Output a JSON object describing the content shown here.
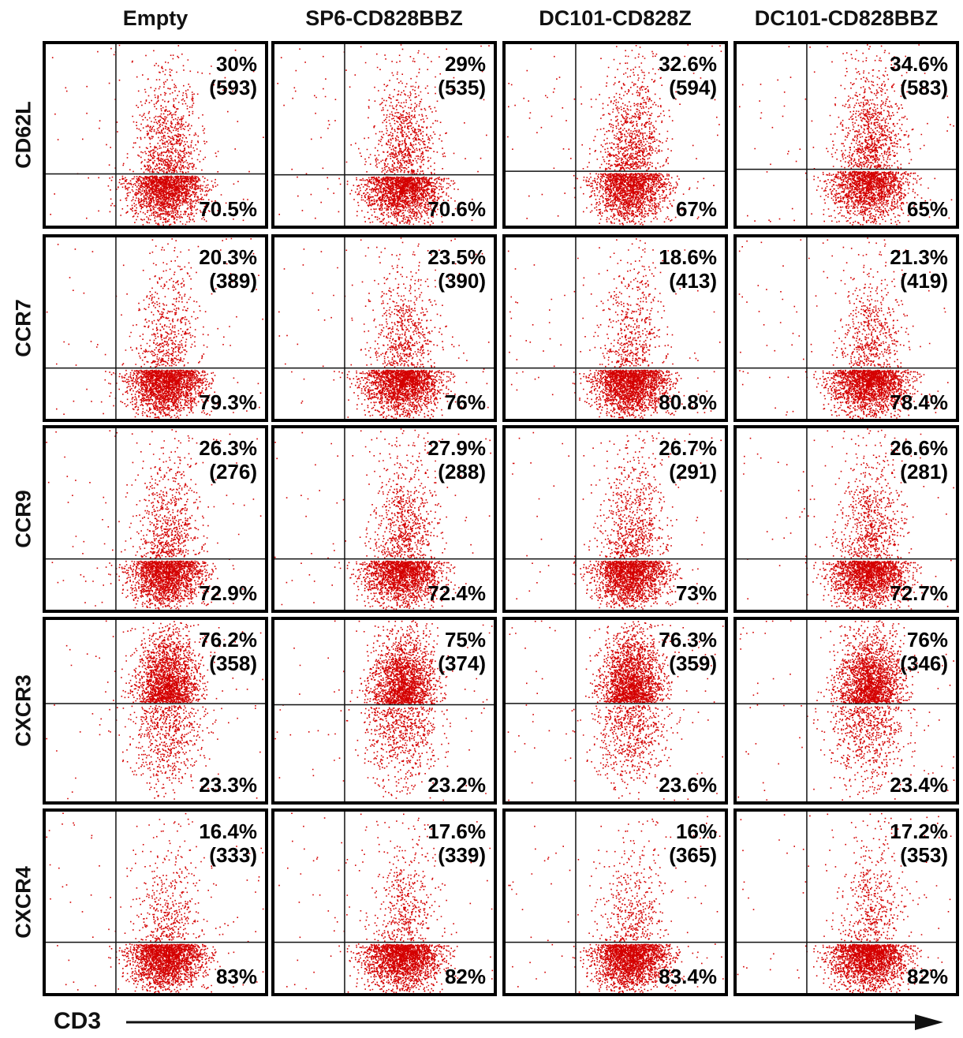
{
  "chart_data": {
    "type": "scatter",
    "columns": [
      "Empty",
      "SP6-CD828BBZ",
      "DC101-CD828Z",
      "DC101-CD828BBZ"
    ],
    "rows": [
      "CD62L",
      "CCR7",
      "CCR9",
      "CXCR3",
      "CXCR4"
    ],
    "xlabel": "CD3",
    "quadrant_values": [
      [
        {
          "upper_pct": "30%",
          "count": "(593)",
          "lower_pct": "70.5%"
        },
        {
          "upper_pct": "29%",
          "count": "(535)",
          "lower_pct": "70.6%"
        },
        {
          "upper_pct": "32.6%",
          "count": "(594)",
          "lower_pct": "67%"
        },
        {
          "upper_pct": "34.6%",
          "count": "(583)",
          "lower_pct": "65%"
        }
      ],
      [
        {
          "upper_pct": "20.3%",
          "count": "(389)",
          "lower_pct": "79.3%"
        },
        {
          "upper_pct": "23.5%",
          "count": "(390)",
          "lower_pct": "76%"
        },
        {
          "upper_pct": "18.6%",
          "count": "(413)",
          "lower_pct": "80.8%"
        },
        {
          "upper_pct": "21.3%",
          "count": "(419)",
          "lower_pct": "78.4%"
        }
      ],
      [
        {
          "upper_pct": "26.3%",
          "count": "(276)",
          "lower_pct": "72.9%"
        },
        {
          "upper_pct": "27.9%",
          "count": "(288)",
          "lower_pct": "72.4%"
        },
        {
          "upper_pct": "26.7%",
          "count": "(291)",
          "lower_pct": "73%"
        },
        {
          "upper_pct": "26.6%",
          "count": "(281)",
          "lower_pct": "72.7%"
        }
      ],
      [
        {
          "upper_pct": "76.2%",
          "count": "(358)",
          "lower_pct": "23.3%"
        },
        {
          "upper_pct": "75%",
          "count": "(374)",
          "lower_pct": "23.2%"
        },
        {
          "upper_pct": "76.3%",
          "count": "(359)",
          "lower_pct": "23.6%"
        },
        {
          "upper_pct": "76%",
          "count": "(346)",
          "lower_pct": "23.4%"
        }
      ],
      [
        {
          "upper_pct": "16.4%",
          "count": "(333)",
          "lower_pct": "83%"
        },
        {
          "upper_pct": "17.6%",
          "count": "(339)",
          "lower_pct": "82%"
        },
        {
          "upper_pct": "16%",
          "count": "(365)",
          "lower_pct": "83.4%"
        },
        {
          "upper_pct": "17.2%",
          "count": "(353)",
          "lower_pct": "82%"
        }
      ]
    ],
    "point_color": "#d40000"
  }
}
